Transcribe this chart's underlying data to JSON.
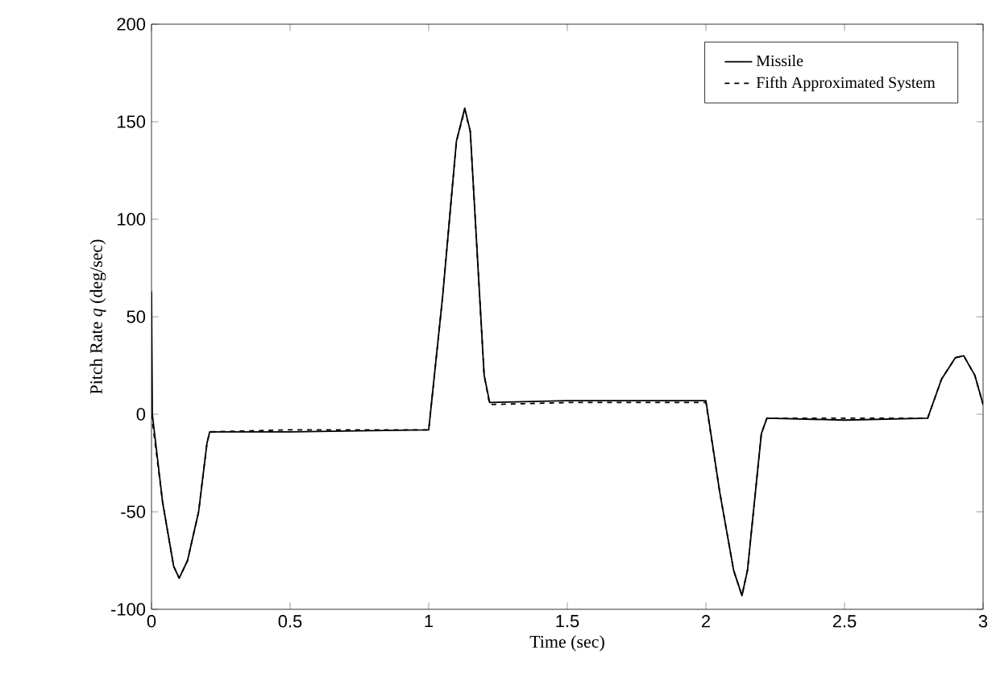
{
  "chart_data": {
    "type": "line",
    "xlabel": "Time (sec)",
    "ylabel": "Pitch Rate  *q*  (deg/sec)",
    "xlim": [
      0,
      3
    ],
    "ylim": [
      -100,
      200
    ],
    "xticks": [
      0,
      0.5,
      1,
      1.5,
      2,
      2.5,
      3
    ],
    "yticks": [
      -100,
      -50,
      0,
      50,
      100,
      150,
      200
    ],
    "legend": "top right",
    "grid": false,
    "marker": "none",
    "series": [
      {
        "name": "Missile",
        "color": "#000000",
        "line_style": "solid",
        "x": [
          0,
          0.003,
          0.04,
          0.08,
          0.1,
          0.13,
          0.17,
          0.2,
          0.21,
          0.5,
          1.0,
          1.05,
          1.1,
          1.13,
          1.15,
          1.2,
          1.22,
          1.5,
          2.0,
          2.05,
          2.1,
          2.13,
          2.15,
          2.2,
          2.22,
          2.5,
          2.8,
          2.85,
          2.9,
          2.93,
          2.97,
          3.0
        ],
        "values": [
          63,
          0,
          -45,
          -78,
          -84,
          -75,
          -50,
          -15,
          -9,
          -9,
          -8,
          60,
          140,
          157,
          145,
          20,
          6,
          7,
          7,
          -40,
          -80,
          -93,
          -80,
          -10,
          -2,
          -3,
          -2,
          18,
          29,
          30,
          20,
          5
        ]
      },
      {
        "name": "Fifth Approximated System",
        "color": "#000000",
        "line_style": "dashed",
        "x": [
          0,
          0.04,
          0.08,
          0.1,
          0.13,
          0.17,
          0.2,
          0.21,
          0.5,
          1.0,
          1.05,
          1.1,
          1.13,
          1.15,
          1.2,
          1.22,
          1.5,
          2.0,
          2.05,
          2.1,
          2.13,
          2.15,
          2.2,
          2.22,
          2.5,
          2.8,
          2.85,
          2.9,
          2.93,
          2.97,
          3.0
        ],
        "values": [
          0,
          -45,
          -78,
          -84,
          -75,
          -50,
          -15,
          -9,
          -8,
          -8,
          60,
          140,
          156,
          145,
          20,
          5,
          6,
          6,
          -40,
          -80,
          -93,
          -80,
          -10,
          -2,
          -2,
          -2,
          18,
          29,
          30,
          20,
          5
        ]
      }
    ]
  }
}
